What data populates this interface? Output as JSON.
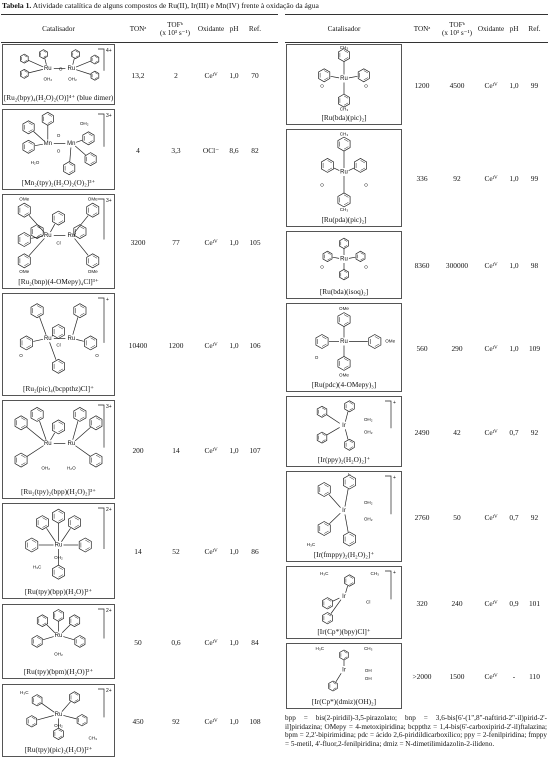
{
  "caption": {
    "label": "Tabela 1.",
    "text": "Atividade catalítica de alguns compostos de Ru(II), Ir(III) e Mn(IV) frente à oxidação da água"
  },
  "headers": {
    "catalyst": "Catalisador",
    "ton": "TONᵃ",
    "tof_line1": "TOFᵇ",
    "tof_line2": "(x 10³ s⁻¹)",
    "oxidant": "Oxidante",
    "ph": "pH",
    "ref": "Ref."
  },
  "left_rows": [
    {
      "name": "[Ru₂(bpy)₄(H₂O)₂(O)]⁴⁺ (blue dimer)",
      "charge": "4+",
      "ton": "13,2",
      "tof": "2",
      "oxidant": "Ceᴵⱽ",
      "ph": "1,0",
      "ref": "70"
    },
    {
      "name": "[Mn₂(tpy)₂(H₂O)₂(O)₂]³⁺",
      "charge": "3+",
      "ton": "4",
      "tof": "3,3",
      "oxidant": "OCl⁻",
      "ph": "8,6",
      "ref": "82"
    },
    {
      "name": "[Ru₂(bnp)(4-OMepy)₄Cl]³⁺",
      "charge": "3+",
      "ton": "3200",
      "tof": "77",
      "oxidant": "Ceᴵⱽ",
      "ph": "1,0",
      "ref": "105"
    },
    {
      "name": "[Ru₂(pic)₄(bcppthz)Cl]⁺",
      "charge": "+",
      "ton": "10400",
      "tof": "1200",
      "oxidant": "Ceᴵⱽ",
      "ph": "1,0",
      "ref": "106"
    },
    {
      "name": "[Ru₂(tpy)₂(bpp)(H₂O)₂]³⁺",
      "charge": "3+",
      "ton": "200",
      "tof": "14",
      "oxidant": "Ceᴵⱽ",
      "ph": "1,0",
      "ref": "107"
    },
    {
      "name": "[Ru(tpy)(bpp)(H₂O)]²⁺",
      "charge": "2+",
      "ton": "14",
      "tof": "52",
      "oxidant": "Ceᴵⱽ",
      "ph": "1,0",
      "ref": "86"
    },
    {
      "name": "[Ru(tpy)(bpm)(H₂O)]²⁺",
      "charge": "2+",
      "ton": "50",
      "tof": "0,6",
      "oxidant": "Ceᴵⱽ",
      "ph": "1,0",
      "ref": "84"
    },
    {
      "name": "[Ru(tpy)(pic)₂(H₂O)]²⁺",
      "charge": "2+",
      "ton": "450",
      "tof": "92",
      "oxidant": "Ceᴵⱽ",
      "ph": "1,0",
      "ref": "108"
    }
  ],
  "right_rows": [
    {
      "name": "[Ru(bda)(pic)₂]",
      "charge": "",
      "ton": "1200",
      "tof": "4500",
      "oxidant": "Ceᴵⱽ",
      "ph": "1,0",
      "ref": "99"
    },
    {
      "name": "[Ru(pda)(pic)₂]",
      "charge": "",
      "ton": "336",
      "tof": "92",
      "oxidant": "Ceᴵⱽ",
      "ph": "1,0",
      "ref": "99"
    },
    {
      "name": "[Ru(bda)(isoq)₂]",
      "charge": "",
      "ton": "8360",
      "tof": "300000",
      "oxidant": "Ceᴵⱽ",
      "ph": "1,0",
      "ref": "98"
    },
    {
      "name": "[Ru(pdc)(4-OMepy)₃]",
      "charge": "",
      "ton": "560",
      "tof": "290",
      "oxidant": "Ceᴵⱽ",
      "ph": "1,0",
      "ref": "109"
    },
    {
      "name": "[Ir(ppy)₂(H₂O)₂]⁺",
      "charge": "+",
      "ton": "2490",
      "tof": "42",
      "oxidant": "Ceᴵⱽ",
      "ph": "0,7",
      "ref": "92"
    },
    {
      "name": "[Ir(fmppy)₂(H₂O)₂]⁺",
      "charge": "+",
      "ton": "2760",
      "tof": "50",
      "oxidant": "Ceᴵⱽ",
      "ph": "0,7",
      "ref": "92"
    },
    {
      "name": "[Ir(Cp*)(bpy)Cl]⁺",
      "charge": "+",
      "ton": "320",
      "tof": "240",
      "oxidant": "Ceᴵⱽ",
      "ph": "0,9",
      "ref": "101"
    },
    {
      "name": "[Ir(Cp*)(dmiz)(OH)₂]",
      "charge": "",
      "ton": ">2000",
      "tof": "1500",
      "oxidant": "Ceᴵⱽ",
      "ph": "-",
      "ref": "110"
    }
  ],
  "atom_labels": {
    "ru": "Ru",
    "mn": "Mn",
    "ir": "Ir",
    "n": "N",
    "o": "O",
    "cl": "Cl",
    "oh2": "OH₂",
    "h2o": "H₂O",
    "ome": "OMe",
    "h3c": "H₃C",
    "ch3": "CH₃",
    "f": "F",
    "oh": "OH"
  },
  "footnote": "bpp = bis(2-piridil)-3,5-pirazolato; bnp = 3,6-bis[6'-(1\",8\"-naftirid-2\"-il)pirid-2'-il]piridazina; OMepy = 4-metoxipiridina; bcppthz = 1,4-bis(6'-carboxipirid-2'-il)ftalazina; bpm = 2,2'-bipirimidina; pdc = ácido 2,6-piridildicarboxílico; ppy = 2-fenilpiridina; fmppy = 5-metil, 4'-fluor,2-fenilpiridina; dmiz = N-dimetilimidazolin-2-ilideno."
}
